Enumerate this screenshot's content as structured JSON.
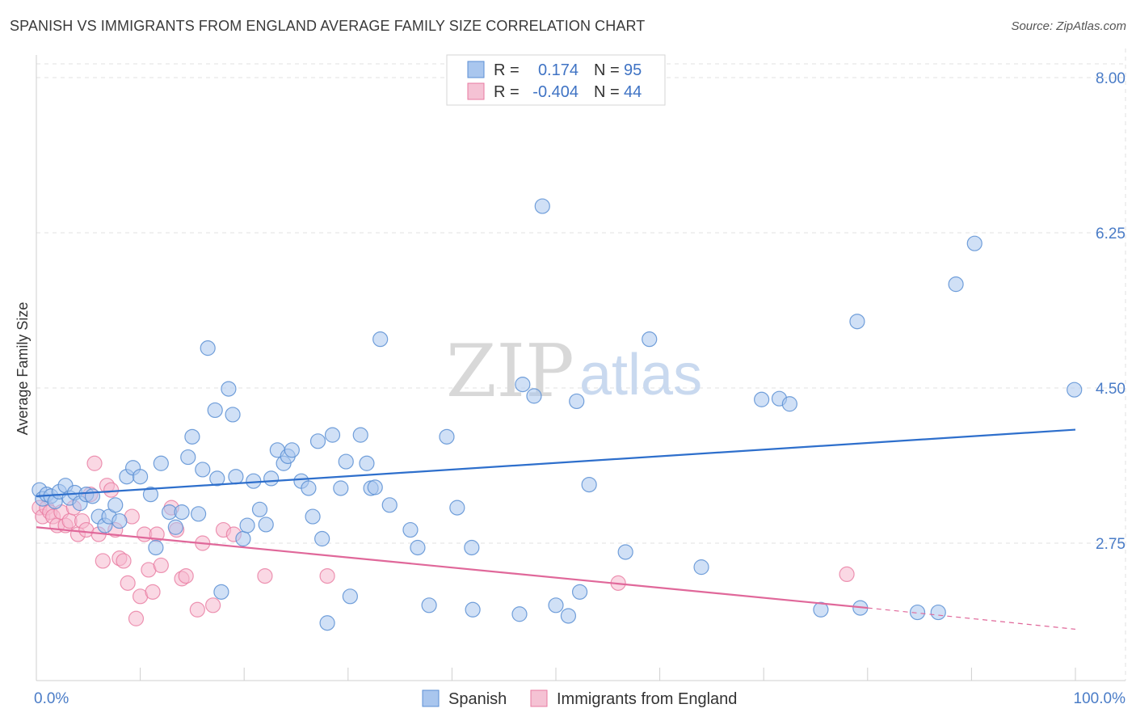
{
  "header": {
    "title": "SPANISH VS IMMIGRANTS FROM ENGLAND AVERAGE FAMILY SIZE CORRELATION CHART",
    "source": "Source: ZipAtlas.com"
  },
  "watermark": {
    "zip": "ZIP",
    "atlas": "atlas"
  },
  "colors": {
    "blue": "#5b8fd4",
    "blue_fill": "#a9c6ee",
    "blue_line": "#2e6fcc",
    "pink": "#e87aa0",
    "pink_fill": "#f5b8cd",
    "pink_line": "#e0689a",
    "grid": "#e2e2e2",
    "tick_label": "#4a7cc7"
  },
  "legend_top": {
    "rows": [
      {
        "r_label": "R =",
        "r_value": "0.174",
        "n_label": "N =",
        "n_value": "95"
      },
      {
        "r_label": "R =",
        "r_value": "-0.404",
        "n_label": "N =",
        "n_value": "44"
      }
    ]
  },
  "chart_data": {
    "type": "scatter",
    "title": "SPANISH VS IMMIGRANTS FROM ENGLAND AVERAGE FAMILY SIZE CORRELATION CHART",
    "xlabel": "",
    "ylabel": "Average Family Size",
    "xlim": [
      0,
      100
    ],
    "ylim": [
      1.4,
      8.25
    ],
    "x_tick_labels": [
      "0.0%",
      "100.0%"
    ],
    "y_ticks": [
      2.75,
      4.5,
      6.25,
      8.0
    ],
    "y_tick_labels": [
      "2.75",
      "4.50",
      "6.25",
      "8.00"
    ],
    "grid": true,
    "legend_position": "bottom-center",
    "series": [
      {
        "name": "Spanish",
        "color": "#5b8fd4",
        "r": 0.174,
        "n": 95,
        "trend": {
          "x": [
            0,
            100
          ],
          "y": [
            3.28,
            4.03
          ]
        },
        "points": [
          [
            0.3,
            3.35
          ],
          [
            0.6,
            3.25
          ],
          [
            1.0,
            3.3
          ],
          [
            1.4,
            3.28
          ],
          [
            1.8,
            3.22
          ],
          [
            2.2,
            3.33
          ],
          [
            2.8,
            3.4
          ],
          [
            3.2,
            3.26
          ],
          [
            3.7,
            3.32
          ],
          [
            4.2,
            3.2
          ],
          [
            4.8,
            3.3
          ],
          [
            5.4,
            3.28
          ],
          [
            6.0,
            3.05
          ],
          [
            6.6,
            2.95
          ],
          [
            7.0,
            3.05
          ],
          [
            7.6,
            3.18
          ],
          [
            8.0,
            3.0
          ],
          [
            8.7,
            3.5
          ],
          [
            9.3,
            3.6
          ],
          [
            10.0,
            3.5
          ],
          [
            11.0,
            3.3
          ],
          [
            11.5,
            2.7
          ],
          [
            12.0,
            3.65
          ],
          [
            12.8,
            3.1
          ],
          [
            13.4,
            2.93
          ],
          [
            14.0,
            3.1
          ],
          [
            14.6,
            3.72
          ],
          [
            15.0,
            3.95
          ],
          [
            15.6,
            3.08
          ],
          [
            16.0,
            3.58
          ],
          [
            16.5,
            4.95
          ],
          [
            17.2,
            4.25
          ],
          [
            17.4,
            3.48
          ],
          [
            17.8,
            2.2
          ],
          [
            18.5,
            4.49
          ],
          [
            18.9,
            4.2
          ],
          [
            19.2,
            3.5
          ],
          [
            19.9,
            2.8
          ],
          [
            20.3,
            2.95
          ],
          [
            20.9,
            3.45
          ],
          [
            21.5,
            3.13
          ],
          [
            22.1,
            2.96
          ],
          [
            22.6,
            3.48
          ],
          [
            23.2,
            3.8
          ],
          [
            23.8,
            3.65
          ],
          [
            24.2,
            3.73
          ],
          [
            24.6,
            3.8
          ],
          [
            25.5,
            3.45
          ],
          [
            26.2,
            3.37
          ],
          [
            26.6,
            3.05
          ],
          [
            27.1,
            3.9
          ],
          [
            27.5,
            2.8
          ],
          [
            28.0,
            1.85
          ],
          [
            28.5,
            3.97
          ],
          [
            29.3,
            3.37
          ],
          [
            29.8,
            3.67
          ],
          [
            30.2,
            2.15
          ],
          [
            31.2,
            3.97
          ],
          [
            31.8,
            3.65
          ],
          [
            32.2,
            3.37
          ],
          [
            32.6,
            3.38
          ],
          [
            33.1,
            5.05
          ],
          [
            34.0,
            3.18
          ],
          [
            36.0,
            2.9
          ],
          [
            36.7,
            2.7
          ],
          [
            37.8,
            2.05
          ],
          [
            39.5,
            3.95
          ],
          [
            40.5,
            3.15
          ],
          [
            41.9,
            2.7
          ],
          [
            42.0,
            2.0
          ],
          [
            46.5,
            1.95
          ],
          [
            46.8,
            4.54
          ],
          [
            47.9,
            4.41
          ],
          [
            48.7,
            6.55
          ],
          [
            50.0,
            2.05
          ],
          [
            51.2,
            1.93
          ],
          [
            52.0,
            4.35
          ],
          [
            52.3,
            2.2
          ],
          [
            53.2,
            3.41
          ],
          [
            56.7,
            2.65
          ],
          [
            59.0,
            5.05
          ],
          [
            64.0,
            2.48
          ],
          [
            69.8,
            4.37
          ],
          [
            71.5,
            4.38
          ],
          [
            72.5,
            4.32
          ],
          [
            75.5,
            2.0
          ],
          [
            79.0,
            5.25
          ],
          [
            79.3,
            2.02
          ],
          [
            84.8,
            1.97
          ],
          [
            86.8,
            1.97
          ],
          [
            88.5,
            5.67
          ],
          [
            90.3,
            6.13
          ],
          [
            99.9,
            4.48
          ]
        ]
      },
      {
        "name": "Immigrants from England",
        "color": "#e87aa0",
        "r": -0.404,
        "n": 44,
        "trend": {
          "x": [
            0,
            80
          ],
          "y": [
            2.93,
            2.02
          ]
        },
        "trend_dashed": {
          "x": [
            80,
            100
          ],
          "y": [
            2.02,
            1.78
          ]
        },
        "points": [
          [
            0.3,
            3.15
          ],
          [
            0.6,
            3.05
          ],
          [
            1.0,
            3.15
          ],
          [
            1.3,
            3.1
          ],
          [
            1.6,
            3.05
          ],
          [
            2.0,
            2.95
          ],
          [
            2.4,
            3.1
          ],
          [
            2.8,
            2.95
          ],
          [
            3.2,
            3.0
          ],
          [
            3.6,
            3.15
          ],
          [
            4.0,
            2.85
          ],
          [
            4.4,
            3.0
          ],
          [
            4.8,
            2.9
          ],
          [
            5.2,
            3.3
          ],
          [
            5.6,
            3.65
          ],
          [
            6.0,
            2.85
          ],
          [
            6.4,
            2.55
          ],
          [
            6.8,
            3.4
          ],
          [
            7.2,
            3.35
          ],
          [
            7.6,
            2.9
          ],
          [
            8.0,
            2.58
          ],
          [
            8.4,
            2.55
          ],
          [
            8.8,
            2.3
          ],
          [
            9.2,
            3.05
          ],
          [
            9.6,
            1.9
          ],
          [
            10.0,
            2.15
          ],
          [
            10.4,
            2.85
          ],
          [
            10.8,
            2.45
          ],
          [
            11.2,
            2.2
          ],
          [
            11.6,
            2.85
          ],
          [
            12.0,
            2.5
          ],
          [
            13.0,
            3.15
          ],
          [
            13.5,
            2.9
          ],
          [
            14.0,
            2.35
          ],
          [
            14.4,
            2.38
          ],
          [
            15.5,
            2.0
          ],
          [
            16.0,
            2.75
          ],
          [
            17.0,
            2.05
          ],
          [
            18.0,
            2.9
          ],
          [
            19.0,
            2.85
          ],
          [
            22.0,
            2.38
          ],
          [
            28.0,
            2.38
          ],
          [
            56.0,
            2.3
          ],
          [
            78.0,
            2.4
          ]
        ]
      }
    ]
  },
  "bottom_legend": {
    "items": [
      {
        "label": "Spanish"
      },
      {
        "label": "Immigrants from England"
      }
    ]
  }
}
